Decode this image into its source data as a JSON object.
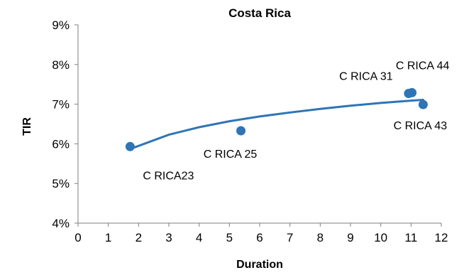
{
  "chart_data": {
    "type": "scatter",
    "title": "Costa Rica",
    "xlabel": "Duration",
    "ylabel": "TIR",
    "xlim": [
      0,
      12
    ],
    "ylim": [
      4,
      9
    ],
    "x_ticks": [
      "0",
      "1",
      "2",
      "3",
      "4",
      "5",
      "6",
      "7",
      "8",
      "9",
      "10",
      "11",
      "12"
    ],
    "y_ticks": [
      "4%",
      "5%",
      "6%",
      "7%",
      "8%",
      "9%"
    ],
    "grid": false,
    "legend": "none",
    "marker_color": "#2E75B6",
    "trendline_color": "#2E75B6",
    "trendline_type": "logarithmic",
    "points": [
      {
        "label": "C RICA23",
        "x": 1.72,
        "y": 5.93
      },
      {
        "label": "C RICA 25",
        "x": 5.38,
        "y": 6.33
      },
      {
        "label": "C RICA 31",
        "x": 10.92,
        "y": 7.27
      },
      {
        "label": "C RICA 44",
        "x": 11.03,
        "y": 7.29
      },
      {
        "label": "C RICA 43",
        "x": 11.4,
        "y": 6.99
      }
    ],
    "trendline": [
      {
        "x": 1.72,
        "y": 5.87
      },
      {
        "x": 3.0,
        "y": 6.23
      },
      {
        "x": 4.0,
        "y": 6.42
      },
      {
        "x": 5.0,
        "y": 6.57
      },
      {
        "x": 6.0,
        "y": 6.69
      },
      {
        "x": 7.0,
        "y": 6.79
      },
      {
        "x": 8.0,
        "y": 6.88
      },
      {
        "x": 9.0,
        "y": 6.96
      },
      {
        "x": 10.0,
        "y": 7.03
      },
      {
        "x": 11.0,
        "y": 7.09
      },
      {
        "x": 11.4,
        "y": 7.11
      }
    ]
  }
}
